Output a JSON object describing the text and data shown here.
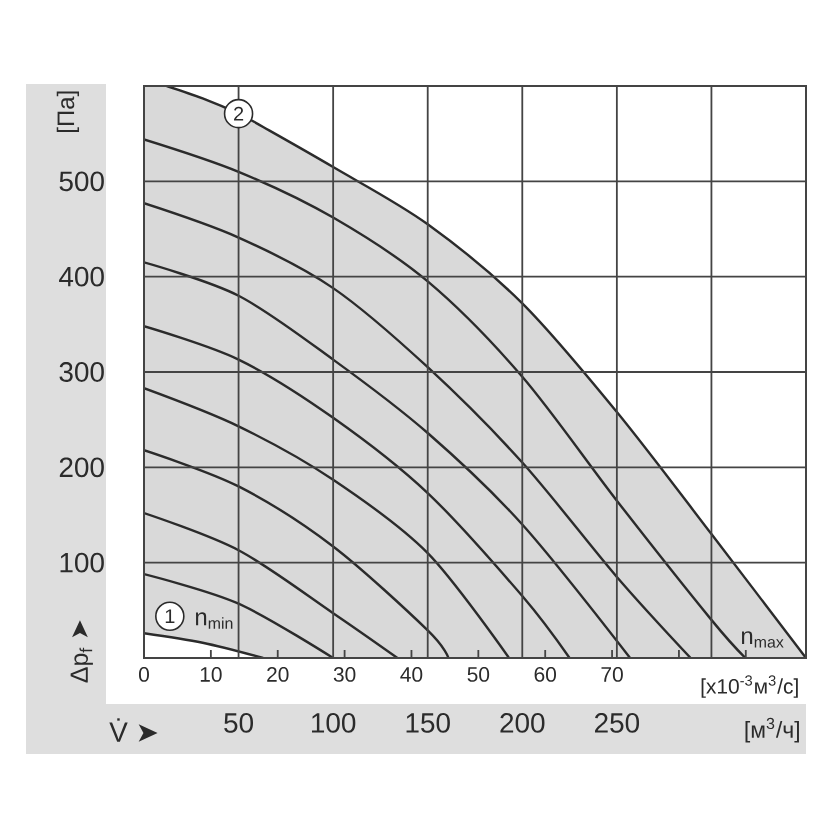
{
  "chart_data": {
    "type": "line",
    "xlabel": "[м$^{3}$/ч]",
    "x2label": "[x10$^{-3}$м$^{3}$/с]",
    "ylabel": "[Па]",
    "xlim": [
      0,
      350
    ],
    "xticks": [
      50,
      100,
      150,
      200,
      250,
      {
        "value": 300,
        "label": null
      }
    ],
    "x2lim": [
      0,
      99
    ],
    "x2ticks": [
      0,
      10,
      20,
      30,
      40,
      50,
      60,
      70,
      {
        "value": 80,
        "label": null
      },
      {
        "value": 90,
        "label": null
      }
    ],
    "ylim": [
      0,
      600
    ],
    "yticks": [
      100,
      200,
      300,
      400,
      500
    ],
    "grid": true,
    "annotations": [
      {
        "text": "2",
        "x": 50,
        "y": 571
      },
      "1",
      "V̇ ➤",
      "Δp$_{f}$ ➤"
    ],
    "series": [
      {
        "name": "n$_{max}$",
        "color": "#2b2b2b",
        "x": [
          0,
          12,
          31,
          50,
          63,
          100,
          150,
          200,
          250,
          300,
          350
        ],
        "values": [
          null,
          600,
          587,
          571,
          557,
          515,
          455,
          372,
          258,
          130,
          0
        ],
        "lower": [
          26,
          22,
          16,
          8,
          0,
          0,
          0,
          0,
          0,
          0,
          0
        ],
        "upper": [
          600,
          600,
          587,
          571,
          557,
          515,
          455,
          372,
          258,
          130,
          0
        ]
      },
      {
        "color": "#2b2b2b",
        "x": [
          0,
          50,
          100,
          150,
          200,
          250,
          300,
          318
        ],
        "values": [
          544,
          510,
          462,
          395,
          295,
          165,
          40,
          0
        ]
      },
      {
        "color": "#2b2b2b",
        "x": [
          0,
          50,
          100,
          150,
          200,
          250,
          289
        ],
        "values": [
          477,
          441,
          388,
          305,
          205,
          85,
          0
        ]
      },
      {
        "color": "#2b2b2b",
        "x": [
          0,
          50,
          100,
          150,
          200,
          257
        ],
        "values": [
          415,
          380,
          313,
          236,
          140,
          0
        ]
      },
      {
        "color": "#2b2b2b",
        "x": [
          0,
          50,
          100,
          150,
          200,
          225
        ],
        "values": [
          348,
          313,
          252,
          173,
          65,
          0
        ]
      },
      {
        "color": "#2b2b2b",
        "x": [
          0,
          50,
          100,
          150,
          193
        ],
        "values": [
          283,
          243,
          187,
          110,
          0
        ]
      },
      {
        "color": "#2b2b2b",
        "x": [
          0,
          50,
          100,
          150,
          161
        ],
        "values": [
          218,
          180,
          117,
          29,
          0
        ]
      },
      {
        "color": "#2b2b2b",
        "x": [
          0,
          50,
          100,
          134
        ],
        "values": [
          152,
          113,
          47,
          0
        ]
      },
      {
        "color": "#2b2b2b",
        "x": [
          0,
          50,
          100
        ],
        "values": [
          88,
          57,
          0
        ]
      },
      {
        "name": "n$_{min}$",
        "color": "#2b2b2b",
        "x": [
          0,
          31,
          63
        ],
        "values": [
          26,
          16,
          0
        ]
      }
    ]
  }
}
